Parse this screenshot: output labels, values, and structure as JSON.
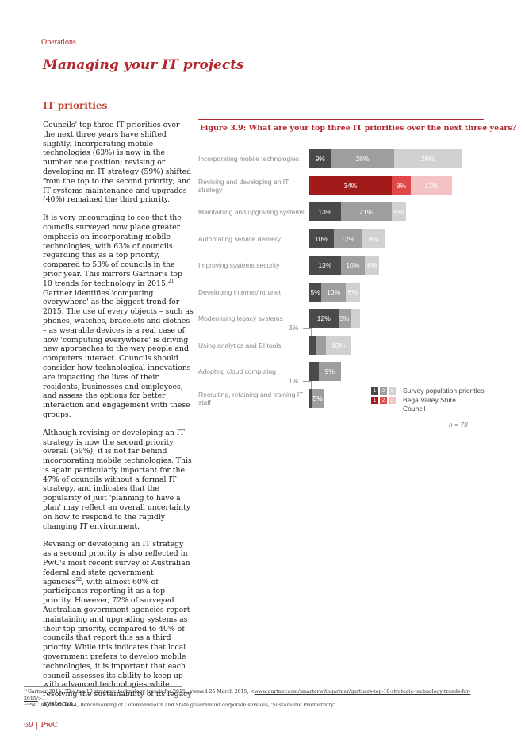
{
  "header": {
    "section": "Operations",
    "title": "Managing your IT projects"
  },
  "subheading": "IT priorities",
  "body": {
    "p1": "Councils' top three IT priorities over the next three years have shifted slightly. Incorporating mobile technologies (63%) is now in the number one position; revising or developing an IT strategy (59%) shifted from the top to the second priority; and IT systems maintenance and upgrades (40%) remained the third priority.",
    "p2a": "It is very encouraging to see that the councils surveyed now place greater emphasis on incorporating mobile technologies, with 63% of councils regarding this as a top priority, compared to 53% of councils in the prior year. This mirrors Gartner's top 10 trends for technology in 2015.",
    "p2_ref": "21",
    "p2b": " Gartner identifies 'computing everywhere' as the biggest trend for 2015. The use of every objects – such as phones, watches, bracelets and clothes – as wearable devices is a real case of how 'computing everywhere' is driving new approaches to the way people and computers interact. Councils should consider how technological innovations are impacting the lives of their residents, businesses and employees, and assess the options for better interaction and engagement with these groups.",
    "p3": "Although revising or developing an IT strategy is now the second priority overall (59%), it is not far behind incorporating mobile technologies. This is again particularly important for the 47% of councils without a formal IT strategy, and indicates that the popularity of just 'planning to have a plan' may reflect an overall uncertainty on how to respond to the rapidly changing IT environment.",
    "p4a": "Revising or developing an IT strategy as a second priority is also reflected in PwC's most recent survey of Australian federal and state government agencies",
    "p4_ref": "22",
    "p4b": ", with almost 60% of participants reporting it as a top priority. However, 72% of surveyed Australian government agencies report maintaining and upgrading systems as their top priority, compared to 40% of councils that report this as a third priority. While this indicates that local government prefers to develop mobile technologies, it is important that each council assesses its ability to keep up with advanced technologies while resolving the sustainability of its legacy systems."
  },
  "figure": {
    "title": "Figure 3.9: What are your top three IT priorities over the next three years?",
    "n_label": "n = 78"
  },
  "chart_data": {
    "type": "bar",
    "stacked": true,
    "orientation": "horizontal",
    "categories": [
      "Incorporating mobile technologies",
      "Revising and developing an IT strategy",
      "Maintaining and upgrading systems",
      "Automating service delivery",
      "Improving systems security",
      "Developing internet/intranet",
      "Modernising legacy systems",
      "Using analytics and BI tools",
      "Adopting cloud computing",
      "Recruiting, retaining and training IT staff"
    ],
    "series": [
      {
        "name": "1",
        "values": [
          9,
          34,
          13,
          10,
          13,
          5,
          12,
          3,
          4,
          1
        ]
      },
      {
        "name": "2",
        "values": [
          26,
          8,
          21,
          12,
          10,
          10,
          5,
          4,
          9,
          5
        ]
      },
      {
        "name": "3",
        "values": [
          28,
          17,
          6,
          9,
          6,
          6,
          4,
          10,
          0,
          0
        ]
      }
    ],
    "highlight_category_index": 1,
    "legend": [
      {
        "keys": [
          "1",
          "2",
          "3"
        ],
        "label": "Survey population priorities"
      },
      {
        "keys": [
          "1",
          "2",
          "3"
        ],
        "label": "Bega Valley Shire",
        "label2": "Council"
      }
    ],
    "callouts": [
      {
        "category_index": 7,
        "text": "3%"
      },
      {
        "category_index": 9,
        "text": "1%"
      }
    ],
    "colors": {
      "grey": [
        "#4a4a4a",
        "#9e9e9e",
        "#d1d1d1"
      ],
      "red": [
        "#a31a1a",
        "#e04848",
        "#f4c2c2"
      ]
    },
    "xlim": [
      0,
      63
    ]
  },
  "footnotes": {
    "fn21_prefix": "²¹Gartner 2015, 'The top 10 strategic technology trends for 2015', viewed 25 March 2015, <",
    "fn21_link": "www.gartner.com/smarterwithgartner/gartners-top-10-strategic-technology-trends-for-2015/",
    "fn21_suffix": ">.",
    "fn22": "²²PwC Australia 2014, Benchmarking of Commonwealth and State government corporate services, 'Sustainable Productivity'"
  },
  "footer": {
    "page": "69 | PwC"
  }
}
